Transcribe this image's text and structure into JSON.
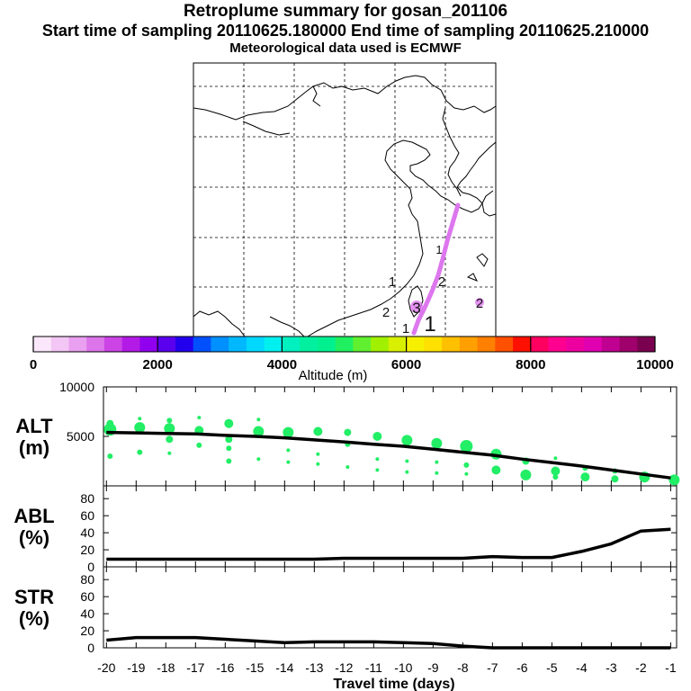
{
  "titles": {
    "line1": "Retroplume summary for gosan_201106",
    "line2": "Start time of sampling 20110625.180000     End time of sampling 20110625.210000",
    "line3": "Meteorological data used is ECMWF"
  },
  "colorbar": {
    "label": "Altitude (m)",
    "ticks": [
      "0",
      "2000",
      "4000",
      "6000",
      "8000",
      "10000"
    ],
    "colors": [
      "#fbe7fb",
      "#f3c6f5",
      "#e9a0f0",
      "#dc74ea",
      "#cc44e6",
      "#b41ae6",
      "#9000ee",
      "#5a00ee",
      "#2200ee",
      "#0050ff",
      "#0090ff",
      "#00b8ff",
      "#00d8ff",
      "#00f0f0",
      "#00f0c0",
      "#00f0a0",
      "#00f090",
      "#20f060",
      "#60f030",
      "#a0f000",
      "#d8f000",
      "#f6f000",
      "#ffe000",
      "#ffc000",
      "#ffa000",
      "#ff8000",
      "#ff5000",
      "#ff1000",
      "#ff0060",
      "#ff0090",
      "#ee00a0",
      "#e000b0",
      "#c00090",
      "#a0006c",
      "#7a0050"
    ]
  },
  "map": {
    "track_color": "#dd77ee",
    "labels": [
      {
        "text": "1",
        "size": 13
      },
      {
        "text": "1",
        "size": 15
      },
      {
        "text": "2",
        "size": 15
      },
      {
        "text": "2",
        "size": 15
      },
      {
        "text": "3",
        "size": 17
      },
      {
        "text": "2",
        "size": 15
      },
      {
        "text": "1",
        "size": 15
      },
      {
        "text": "1",
        "size": 24
      }
    ]
  },
  "chart_data": {
    "type": "line",
    "title": "Retroplume summary for gosan_201106",
    "xlabel": "Travel time (days)",
    "x": [
      -20,
      -19,
      -18,
      -17,
      -16,
      -15,
      -14,
      -13,
      -12,
      -11,
      -10,
      -9,
      -8,
      -7,
      -6,
      -5,
      -4,
      -3,
      -2,
      -1
    ],
    "xticks": [
      "-20",
      "-19",
      "-18",
      "-17",
      "-16",
      "-15",
      "-14",
      "-13",
      "-12",
      "-11",
      "-10",
      "-9",
      "-8",
      "-7",
      "-6",
      "-5",
      "-4",
      "-3",
      "-2",
      "-1"
    ],
    "xlim": [
      -20.1,
      -0.8
    ],
    "panels": [
      {
        "name": "ALT",
        "ylabel": "ALT\n(m)",
        "ylabel_lines": [
          "ALT",
          "(m)"
        ],
        "ylim": [
          0,
          10000
        ],
        "yticks": [
          5000,
          10000
        ],
        "ytick_labels": [
          "5000",
          "10000"
        ],
        "line": [
          5400,
          5350,
          5300,
          5250,
          5100,
          5000,
          4850,
          4650,
          4450,
          4200,
          4000,
          3700,
          3400,
          3100,
          2700,
          2350,
          2000,
          1600,
          1200,
          800
        ],
        "scatter_color": "#22ee66",
        "scatter": [
          [
            -20,
            6300,
            4
          ],
          [
            -20,
            5700,
            7
          ],
          [
            -20,
            3000,
            3
          ],
          [
            -19,
            6800,
            2
          ],
          [
            -19,
            5900,
            6
          ],
          [
            -19,
            3400,
            3
          ],
          [
            -18,
            6600,
            3
          ],
          [
            -18,
            5800,
            6
          ],
          [
            -18,
            4700,
            4
          ],
          [
            -18,
            3300,
            2
          ],
          [
            -17,
            6900,
            2
          ],
          [
            -17,
            5600,
            5
          ],
          [
            -17,
            4100,
            3
          ],
          [
            -16,
            6300,
            5
          ],
          [
            -16,
            4700,
            4
          ],
          [
            -16,
            3800,
            3
          ],
          [
            -16,
            2500,
            3
          ],
          [
            -15,
            6700,
            2
          ],
          [
            -15,
            5500,
            6
          ],
          [
            -15,
            2700,
            2
          ],
          [
            -14,
            5400,
            6
          ],
          [
            -14,
            3600,
            2
          ],
          [
            -14,
            2400,
            2
          ],
          [
            -13,
            5500,
            5
          ],
          [
            -13,
            3200,
            2
          ],
          [
            -13,
            2200,
            2
          ],
          [
            -12,
            5400,
            4
          ],
          [
            -12,
            4200,
            3
          ],
          [
            -12,
            1900,
            2
          ],
          [
            -11,
            5000,
            5
          ],
          [
            -11,
            2700,
            2
          ],
          [
            -11,
            1600,
            2
          ],
          [
            -10,
            4600,
            6
          ],
          [
            -10,
            2500,
            2
          ],
          [
            -10,
            1400,
            2
          ],
          [
            -9,
            4300,
            6
          ],
          [
            -9,
            2400,
            2
          ],
          [
            -9,
            1300,
            2
          ],
          [
            -8,
            4000,
            7
          ],
          [
            -8,
            2100,
            3
          ],
          [
            -8,
            1200,
            2
          ],
          [
            -7,
            3200,
            6
          ],
          [
            -7,
            1600,
            5
          ],
          [
            -6,
            2500,
            4
          ],
          [
            -6,
            1100,
            6
          ],
          [
            -5,
            2800,
            2
          ],
          [
            -5,
            1500,
            5
          ],
          [
            -5,
            900,
            3
          ],
          [
            -4,
            1800,
            3
          ],
          [
            -4,
            900,
            5
          ],
          [
            -3,
            1500,
            3
          ],
          [
            -3,
            700,
            4
          ],
          [
            -2,
            900,
            6
          ],
          [
            -2,
            600,
            3
          ],
          [
            -1,
            600,
            6
          ]
        ]
      },
      {
        "name": "ABL",
        "ylabel": "ABL\n(%)",
        "ylabel_lines": [
          "ABL",
          "(%)"
        ],
        "ylim": [
          0,
          95
        ],
        "yticks": [
          0,
          20,
          40,
          60,
          80
        ],
        "ytick_labels": [
          "0",
          "20",
          "40",
          "60",
          "80"
        ],
        "line": [
          9,
          9,
          9,
          9,
          9,
          9,
          9,
          9,
          10,
          10,
          10,
          10,
          10,
          12,
          11,
          11,
          18,
          27,
          42,
          44
        ]
      },
      {
        "name": "STR",
        "ylabel": "STR\n(%)",
        "ylabel_lines": [
          "STR",
          "(%)"
        ],
        "ylim": [
          0,
          95
        ],
        "yticks": [
          0,
          20,
          40,
          60,
          80
        ],
        "ytick_labels": [
          "0",
          "20",
          "40",
          "60",
          "80"
        ],
        "line": [
          9,
          12,
          12,
          12,
          10,
          8,
          6,
          7,
          7,
          7,
          6,
          5,
          2,
          0,
          0,
          0,
          0,
          0,
          0,
          0
        ]
      }
    ],
    "colorbar_ticks": [
      0,
      2000,
      4000,
      6000,
      8000,
      10000
    ],
    "colorbar_label": "Altitude (m)"
  }
}
